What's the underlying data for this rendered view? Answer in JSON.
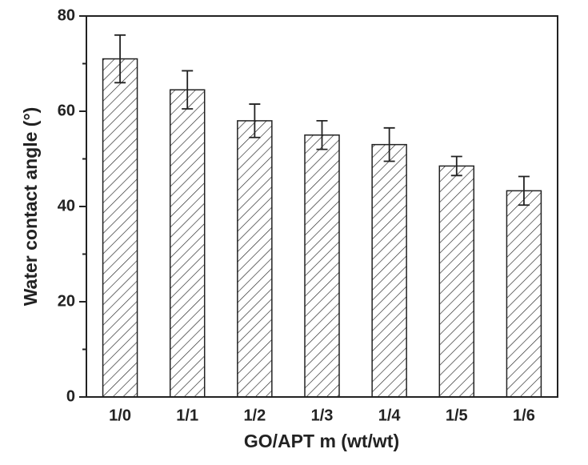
{
  "chart_data": {
    "type": "bar",
    "xlabel": "GO/APT m (wt/wt)",
    "ylabel": "Water contact angle (°)",
    "categories": [
      "1/0",
      "1/1",
      "1/2",
      "1/3",
      "1/4",
      "1/5",
      "1/6"
    ],
    "values": [
      71,
      64.5,
      58,
      55,
      53,
      48.5,
      43.3
    ],
    "errors": [
      5,
      4,
      3.5,
      3,
      3.5,
      2,
      3
    ],
    "color": "#222222",
    "hatch": "diagonal",
    "ylim": [
      0,
      80
    ],
    "yticks": [
      0,
      20,
      40,
      60,
      80
    ],
    "yminorticks": [
      10,
      30,
      50,
      70
    ]
  }
}
